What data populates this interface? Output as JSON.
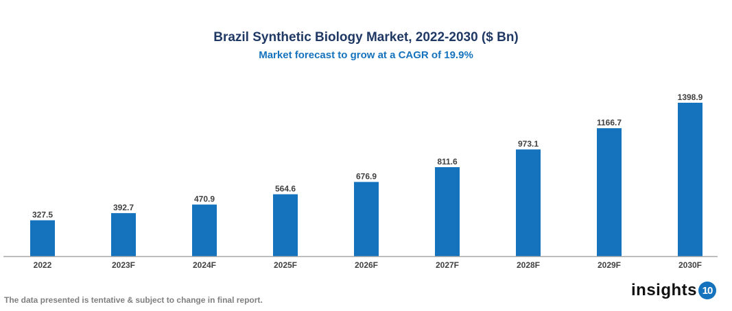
{
  "chart_data": {
    "type": "bar",
    "title": "Brazil Synthetic Biology Market, 2022-2030 ($ Bn)",
    "subtitle": "Market forecast to grow at a CAGR of 19.9%",
    "categories": [
      "2022",
      "2023F",
      "2024F",
      "2025F",
      "2026F",
      "2027F",
      "2028F",
      "2029F",
      "2030F"
    ],
    "values": [
      327.5,
      392.7,
      470.9,
      564.6,
      676.9,
      811.6,
      973.1,
      1166.7,
      1398.9
    ],
    "xlabel": "",
    "ylabel": "",
    "ylim": [
      0,
      1400
    ],
    "grid": false,
    "bar_color": "#1573bd",
    "data_labels": true
  },
  "footnote": "The data presented is tentative & subject to change in final report.",
  "logo": {
    "text": "insights",
    "badge": "10"
  }
}
